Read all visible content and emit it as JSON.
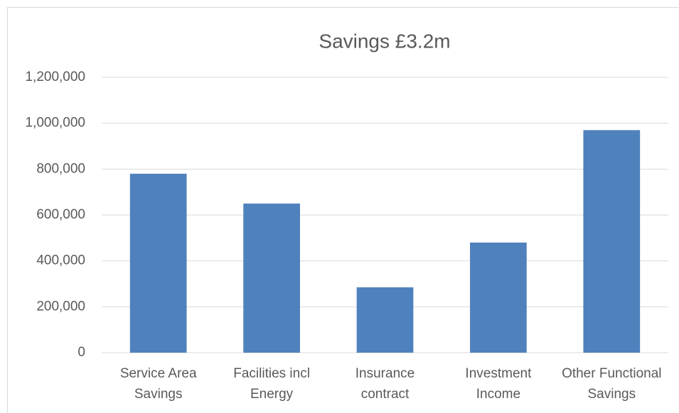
{
  "chart_data": {
    "type": "bar",
    "title": "Savings £3.2m",
    "categories": [
      "Service Area Savings",
      "Facilities incl Energy",
      "Insurance contract",
      "Investment Income",
      "Other Functional Savings"
    ],
    "values": [
      780000,
      650000,
      285000,
      480000,
      970000
    ],
    "color": "#4f81bd",
    "ylim": [
      0,
      1200000
    ],
    "yticks": [
      0,
      {
        "value": 200000,
        "label": "200,000"
      },
      {
        "value": 400000,
        "label": "400,000"
      },
      {
        "value": 600000,
        "label": "600,000"
      },
      {
        "value": 800000,
        "label": "800,000"
      },
      {
        "value": 1000000,
        "label": "1,000,000"
      },
      {
        "value": 1200000,
        "label": "1,200,000"
      }
    ],
    "grid": true
  }
}
